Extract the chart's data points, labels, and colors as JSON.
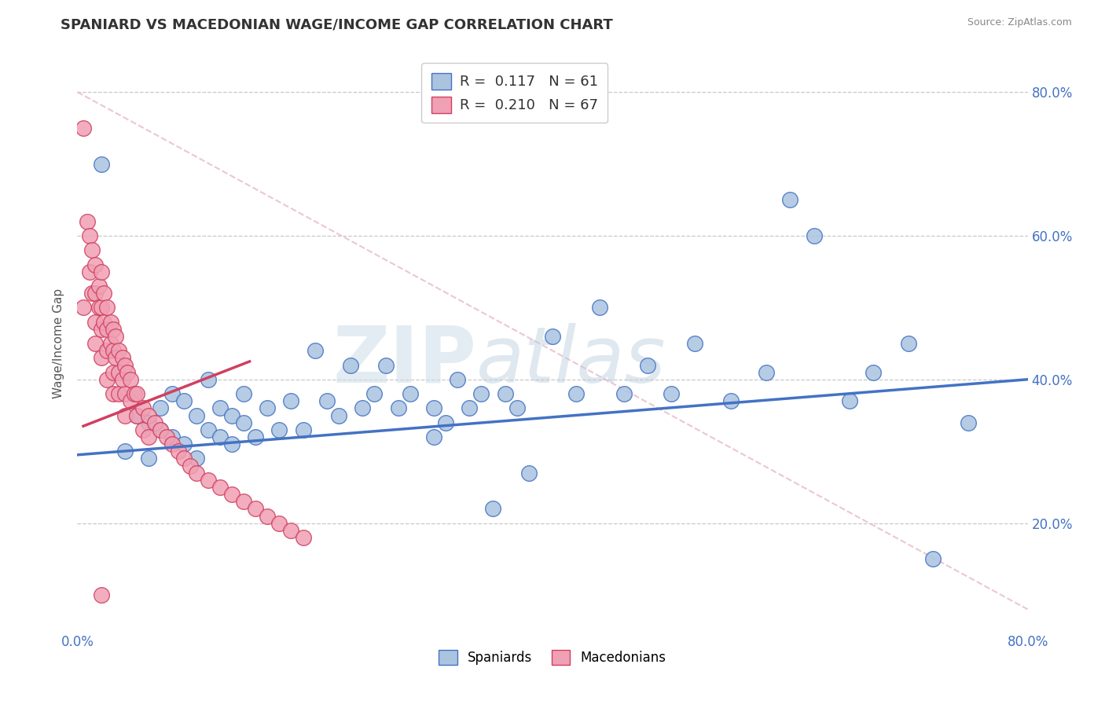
{
  "title": "SPANIARD VS MACEDONIAN WAGE/INCOME GAP CORRELATION CHART",
  "source": "Source: ZipAtlas.com",
  "ylabel": "Wage/Income Gap",
  "xlim": [
    0.0,
    0.8
  ],
  "ylim": [
    0.05,
    0.85
  ],
  "legend_r_blue": "0.117",
  "legend_n_blue": "61",
  "legend_r_pink": "0.210",
  "legend_n_pink": "67",
  "scatter_blue_x": [
    0.02,
    0.04,
    0.05,
    0.06,
    0.06,
    0.07,
    0.07,
    0.08,
    0.08,
    0.09,
    0.09,
    0.1,
    0.1,
    0.11,
    0.11,
    0.12,
    0.12,
    0.13,
    0.13,
    0.14,
    0.14,
    0.15,
    0.16,
    0.17,
    0.18,
    0.19,
    0.2,
    0.21,
    0.22,
    0.23,
    0.24,
    0.25,
    0.26,
    0.27,
    0.28,
    0.3,
    0.3,
    0.31,
    0.32,
    0.33,
    0.34,
    0.35,
    0.36,
    0.37,
    0.38,
    0.4,
    0.42,
    0.44,
    0.46,
    0.48,
    0.5,
    0.52,
    0.55,
    0.58,
    0.6,
    0.62,
    0.65,
    0.67,
    0.7,
    0.72,
    0.75
  ],
  "scatter_blue_y": [
    0.7,
    0.3,
    0.35,
    0.29,
    0.34,
    0.33,
    0.36,
    0.32,
    0.38,
    0.31,
    0.37,
    0.29,
    0.35,
    0.33,
    0.4,
    0.32,
    0.36,
    0.31,
    0.35,
    0.34,
    0.38,
    0.32,
    0.36,
    0.33,
    0.37,
    0.33,
    0.44,
    0.37,
    0.35,
    0.42,
    0.36,
    0.38,
    0.42,
    0.36,
    0.38,
    0.32,
    0.36,
    0.34,
    0.4,
    0.36,
    0.38,
    0.22,
    0.38,
    0.36,
    0.27,
    0.46,
    0.38,
    0.5,
    0.38,
    0.42,
    0.38,
    0.45,
    0.37,
    0.41,
    0.65,
    0.6,
    0.37,
    0.41,
    0.45,
    0.15,
    0.34
  ],
  "scatter_pink_x": [
    0.005,
    0.005,
    0.008,
    0.01,
    0.01,
    0.012,
    0.012,
    0.015,
    0.015,
    0.015,
    0.015,
    0.018,
    0.018,
    0.02,
    0.02,
    0.02,
    0.02,
    0.022,
    0.022,
    0.025,
    0.025,
    0.025,
    0.025,
    0.028,
    0.028,
    0.03,
    0.03,
    0.03,
    0.03,
    0.032,
    0.032,
    0.035,
    0.035,
    0.035,
    0.038,
    0.038,
    0.04,
    0.04,
    0.04,
    0.042,
    0.045,
    0.045,
    0.048,
    0.05,
    0.05,
    0.055,
    0.055,
    0.06,
    0.06,
    0.065,
    0.07,
    0.075,
    0.08,
    0.085,
    0.09,
    0.095,
    0.1,
    0.11,
    0.12,
    0.13,
    0.14,
    0.15,
    0.16,
    0.17,
    0.18,
    0.19,
    0.02
  ],
  "scatter_pink_y": [
    0.75,
    0.5,
    0.62,
    0.6,
    0.55,
    0.58,
    0.52,
    0.56,
    0.52,
    0.48,
    0.45,
    0.53,
    0.5,
    0.55,
    0.5,
    0.47,
    0.43,
    0.52,
    0.48,
    0.5,
    0.47,
    0.44,
    0.4,
    0.48,
    0.45,
    0.47,
    0.44,
    0.41,
    0.38,
    0.46,
    0.43,
    0.44,
    0.41,
    0.38,
    0.43,
    0.4,
    0.42,
    0.38,
    0.35,
    0.41,
    0.4,
    0.37,
    0.38,
    0.38,
    0.35,
    0.36,
    0.33,
    0.35,
    0.32,
    0.34,
    0.33,
    0.32,
    0.31,
    0.3,
    0.29,
    0.28,
    0.27,
    0.26,
    0.25,
    0.24,
    0.23,
    0.22,
    0.21,
    0.2,
    0.19,
    0.18,
    0.1
  ],
  "blue_line_x": [
    0.0,
    0.8
  ],
  "blue_line_y": [
    0.295,
    0.4
  ],
  "pink_line_x": [
    0.005,
    0.145
  ],
  "pink_line_y": [
    0.335,
    0.425
  ],
  "diag_line_x": [
    0.0,
    0.8
  ],
  "diag_line_y": [
    0.8,
    0.08
  ],
  "watermark_zip": "ZIP",
  "watermark_atlas": "atlas",
  "color_blue_scatter": "#aac4e0",
  "color_blue_line": "#4472c4",
  "color_pink_scatter": "#f0a0b4",
  "color_pink_line": "#d04060",
  "color_diag": "#e8b8c8",
  "background_color": "#ffffff",
  "grid_color": "#c8c8c8",
  "tick_color": "#4472c4"
}
